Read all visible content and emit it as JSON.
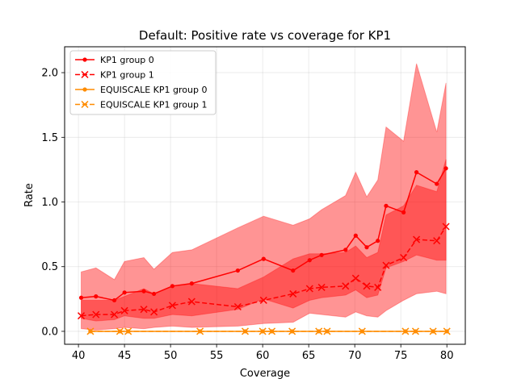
{
  "chart_data": {
    "type": "line",
    "title": "Default: Positive rate vs coverage for KP1",
    "xlabel": "Coverage",
    "ylabel": "Rate",
    "xlim": [
      38.5,
      82.0
    ],
    "ylim": [
      -0.1,
      2.2
    ],
    "xticks": [
      40,
      45,
      50,
      55,
      60,
      65,
      70,
      75,
      80
    ],
    "xtick_labels": [
      "40",
      "45",
      "50",
      "55",
      "60",
      "65",
      "70",
      "75",
      "80"
    ],
    "yticks": [
      0.0,
      0.5,
      1.0,
      1.5,
      2.0
    ],
    "ytick_labels": [
      "0.0",
      "0.5",
      "1.0",
      "1.5",
      "2.0"
    ],
    "grid": true,
    "legend_position": "top-left",
    "series": [
      {
        "name": "KP1 group 0",
        "color": "#ff0000",
        "linestyle": "solid",
        "marker": "dot",
        "band_color": "#ff0000",
        "x": [
          40.3,
          41.9,
          43.9,
          45.0,
          47.1,
          48.2,
          50.2,
          52.3,
          57.3,
          60.1,
          63.3,
          65.1,
          66.4,
          69.0,
          70.1,
          71.3,
          72.5,
          73.4,
          75.3,
          76.7,
          78.9,
          79.9
        ],
        "y": [
          0.26,
          0.27,
          0.24,
          0.3,
          0.31,
          0.29,
          0.35,
          0.37,
          0.47,
          0.56,
          0.47,
          0.55,
          0.59,
          0.63,
          0.74,
          0.65,
          0.7,
          0.97,
          0.92,
          1.23,
          1.14,
          1.26
        ],
        "upper": [
          0.46,
          0.49,
          0.4,
          0.54,
          0.57,
          0.48,
          0.61,
          0.63,
          0.8,
          0.89,
          0.82,
          0.87,
          0.94,
          1.05,
          1.23,
          1.04,
          1.17,
          1.58,
          1.47,
          2.07,
          1.54,
          1.92
        ],
        "lower": [
          0.1,
          0.08,
          0.09,
          0.12,
          0.1,
          0.1,
          0.13,
          0.12,
          0.17,
          0.25,
          0.18,
          0.24,
          0.26,
          0.28,
          0.32,
          0.26,
          0.28,
          0.49,
          0.54,
          0.59,
          0.55,
          0.55
        ]
      },
      {
        "name": "KP1 group 1",
        "color": "#ff0000",
        "linestyle": "dashed",
        "marker": "x",
        "band_color": "#ff0000",
        "x": [
          40.3,
          41.9,
          43.9,
          45.0,
          47.1,
          48.2,
          50.2,
          52.3,
          57.3,
          60.1,
          63.3,
          65.1,
          66.4,
          69.0,
          70.1,
          71.3,
          72.5,
          73.4,
          75.3,
          76.7,
          78.9,
          79.9
        ],
        "y": [
          0.12,
          0.13,
          0.13,
          0.16,
          0.17,
          0.15,
          0.2,
          0.23,
          0.19,
          0.24,
          0.29,
          0.33,
          0.34,
          0.35,
          0.41,
          0.35,
          0.34,
          0.51,
          0.57,
          0.71,
          0.7,
          0.81
        ],
        "upper": [
          0.24,
          0.24,
          0.24,
          0.27,
          0.33,
          0.29,
          0.35,
          0.37,
          0.33,
          0.42,
          0.56,
          0.6,
          0.6,
          0.61,
          0.66,
          0.57,
          0.61,
          0.9,
          0.97,
          1.13,
          1.08,
          1.33
        ],
        "lower": [
          0.02,
          0.01,
          0.02,
          0.03,
          0.02,
          0.03,
          0.04,
          0.03,
          0.04,
          0.06,
          0.07,
          0.14,
          0.13,
          0.11,
          0.15,
          0.12,
          0.11,
          0.16,
          0.24,
          0.29,
          0.31,
          0.29
        ]
      },
      {
        "name": "EQUISCALE KP1 group 0",
        "color": "#ff8c00",
        "linestyle": "solid",
        "marker": "dot",
        "x": [
          41.3,
          44.5,
          45.4,
          53.2,
          58.1,
          60.0,
          61.0,
          63.2,
          66.1,
          67.0,
          70.8,
          75.5,
          76.6,
          78.5,
          80.0
        ],
        "y": [
          0,
          0,
          0,
          0,
          0,
          0,
          0,
          0,
          0,
          0,
          0,
          0,
          0,
          0,
          0
        ]
      },
      {
        "name": "EQUISCALE KP1 group 1",
        "color": "#ff8c00",
        "linestyle": "dashed",
        "marker": "x",
        "x": [
          41.3,
          44.5,
          45.4,
          53.2,
          58.1,
          60.0,
          61.0,
          63.2,
          66.1,
          67.0,
          70.8,
          75.5,
          76.6,
          78.5,
          80.0
        ],
        "y": [
          0,
          0,
          0,
          0,
          0,
          0,
          0,
          0,
          0,
          0,
          0,
          0,
          0,
          0,
          0
        ]
      }
    ]
  }
}
